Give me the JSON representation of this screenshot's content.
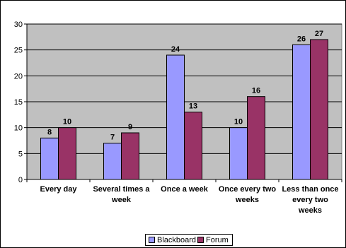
{
  "chart_data": {
    "type": "bar",
    "categories": [
      [
        "Every day"
      ],
      [
        "Several times a",
        "week"
      ],
      [
        "Once a week"
      ],
      [
        "Once every two",
        "weeks"
      ],
      [
        "Less than once",
        "every two",
        "weeks"
      ]
    ],
    "series": [
      {
        "name": "Blackboard",
        "color": "#9999ff",
        "values": [
          8,
          7,
          24,
          10,
          26
        ]
      },
      {
        "name": "Forum",
        "color": "#993366",
        "values": [
          10,
          9,
          13,
          16,
          27
        ]
      }
    ],
    "ylim": [
      0,
      30
    ],
    "yticks": [
      0,
      5,
      10,
      15,
      20,
      25,
      30
    ],
    "grid": true,
    "plot_background": "#c0c0c0",
    "legend_position": "bottom"
  }
}
